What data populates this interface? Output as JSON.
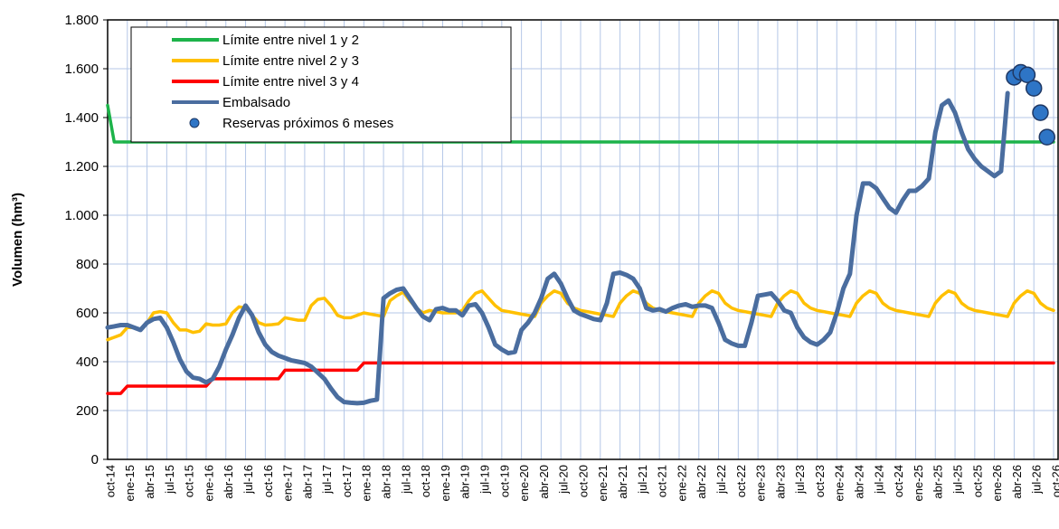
{
  "chart_data": {
    "type": "line",
    "y_label": "Volumen (hm³)",
    "ylim": [
      0,
      1800
    ],
    "yticks": [
      0,
      200,
      400,
      600,
      800,
      {
        "value": 1000,
        "label": "1.000"
      },
      {
        "value": 1200,
        "label": "1.200"
      },
      {
        "value": 1400,
        "label": "1.400"
      },
      {
        "value": 1600,
        "label": "1.600"
      },
      {
        "value": 1800,
        "label": "1.800"
      }
    ],
    "grid": true,
    "legend": "upper left",
    "categories": [
      "oct-14",
      null,
      null,
      "ene-15",
      null,
      null,
      "abr-15",
      null,
      null,
      "jul-15",
      null,
      null,
      "oct-15",
      null,
      null,
      "ene-16",
      null,
      null,
      "abr-16",
      null,
      null,
      "jul-16",
      null,
      null,
      "oct-16",
      null,
      null,
      "ene-17",
      null,
      null,
      "abr-17",
      null,
      null,
      "jul-17",
      null,
      null,
      "oct-17",
      null,
      null,
      "ene-18",
      null,
      null,
      "abr-18",
      null,
      null,
      "jul-18",
      null,
      null,
      "oct-18",
      null,
      null,
      "ene-19",
      null,
      null,
      "abr-19",
      null,
      null,
      "jul-19",
      null,
      null,
      "oct-19",
      null,
      null,
      "ene-20",
      null,
      null,
      "abr-20",
      null,
      null,
      "jul-20",
      null,
      null,
      "oct-20",
      null,
      null,
      "ene-21",
      null,
      null,
      "abr-21",
      null,
      null,
      "jul-21",
      null,
      null,
      "oct-21",
      null,
      null,
      "ene-22",
      null,
      null,
      "abr-22",
      null,
      null,
      "jul-22",
      null,
      null,
      "oct-22",
      null,
      null,
      "ene-23",
      null,
      null,
      "abr-23",
      null,
      null,
      "jul-23",
      null,
      null,
      "oct-23",
      null,
      null,
      "ene-24",
      null,
      null,
      "abr-24",
      null,
      null,
      "jul-24",
      null,
      null,
      "oct-24",
      null,
      null,
      "ene-25",
      null,
      null,
      "abr-25",
      null,
      null,
      "jul-25",
      null,
      null,
      "oct-25",
      null,
      null,
      "ene-26",
      null,
      null,
      "abr-26",
      null,
      null,
      "jul-26",
      null,
      null,
      "oct-26"
    ],
    "series": [
      {
        "name": "Límite entre nivel 1 y 2",
        "color": "#1db34a",
        "type": "line",
        "values": [
          1450,
          1300,
          1300,
          1300,
          1300,
          1300,
          1300,
          1300,
          1300,
          1300,
          1300,
          1300,
          1300,
          1300,
          1300,
          1300,
          1300,
          1300,
          1300,
          1300,
          1300,
          1300,
          1300,
          1300,
          1300,
          1300,
          1300,
          1300,
          1300,
          1300,
          1300,
          1300,
          1300,
          1300,
          1300,
          1300,
          1300,
          1300,
          1300,
          1300,
          1300,
          1300,
          1300,
          1300,
          1300,
          1300,
          1300,
          1300,
          1300,
          1300,
          1300,
          1300,
          1300,
          1300,
          1300,
          1300,
          1300,
          1300,
          1300,
          1300,
          1300,
          1300,
          1300,
          1300,
          1300,
          1300,
          1300,
          1300,
          1300,
          1300,
          1300,
          1300,
          1300,
          1300,
          1300,
          1300,
          1300,
          1300,
          1300,
          1300,
          1300,
          1300,
          1300,
          1300,
          1300,
          1300,
          1300,
          1300,
          1300,
          1300,
          1300,
          1300,
          1300,
          1300,
          1300,
          1300,
          1300,
          1300,
          1300,
          1300,
          1300,
          1300,
          1300,
          1300,
          1300,
          1300,
          1300,
          1300,
          1300,
          1300,
          1300,
          1300,
          1300,
          1300,
          1300,
          1300,
          1300,
          1300,
          1300,
          1300,
          1300,
          1300,
          1300,
          1300,
          1300,
          1300,
          1300,
          1300,
          1300,
          1300,
          1300,
          1300,
          1300,
          1300,
          1300,
          1300,
          1300,
          1300,
          1300,
          1300,
          1300,
          1300,
          1300,
          1300,
          1300
        ]
      },
      {
        "name": "Límite entre nivel 2 y 3",
        "color": "#ffc000",
        "type": "line",
        "values": [
          490,
          500,
          510,
          540,
          540,
          530,
          560,
          600,
          605,
          600,
          560,
          530,
          530,
          520,
          525,
          555,
          550,
          550,
          555,
          600,
          625,
          620,
          590,
          560,
          550,
          552,
          555,
          580,
          575,
          570,
          570,
          630,
          655,
          660,
          630,
          590,
          580,
          580,
          590,
          600,
          595,
          590,
          585,
          650,
          670,
          685,
          650,
          620,
          600,
          610,
          605,
          600,
          600,
          600,
          610,
          650,
          680,
          690,
          660,
          630,
          610,
          605,
          600,
          595,
          590,
          585,
          640,
          670,
          690,
          680,
          640,
          620,
          610,
          605,
          600,
          595,
          590,
          585,
          640,
          670,
          690,
          680,
          640,
          620,
          610,
          605,
          600,
          595,
          590,
          585,
          640,
          670,
          690,
          680,
          640,
          620,
          610,
          605,
          600,
          595,
          590,
          585,
          640,
          670,
          690,
          680,
          640,
          620,
          610,
          605,
          600,
          595,
          590,
          585,
          640,
          670,
          690,
          680,
          640,
          620,
          610,
          605,
          600,
          595,
          590,
          585,
          640,
          670,
          690,
          680,
          640,
          620,
          610,
          605,
          600,
          595,
          590,
          585,
          640,
          670,
          690,
          680,
          640,
          620,
          610
        ]
      },
      {
        "name": "Límite entre nivel 3 y 4",
        "color": "#ff0000",
        "type": "line",
        "values": [
          270,
          270,
          270,
          300,
          300,
          300,
          300,
          300,
          300,
          300,
          300,
          300,
          300,
          300,
          300,
          300,
          330,
          330,
          330,
          330,
          330,
          330,
          330,
          330,
          330,
          330,
          330,
          365,
          365,
          365,
          365,
          365,
          365,
          365,
          365,
          365,
          365,
          365,
          365,
          395,
          395,
          395,
          395,
          395,
          395,
          395,
          395,
          395,
          395,
          395,
          395,
          395,
          395,
          395,
          395,
          395,
          395,
          395,
          395,
          395,
          395,
          395,
          395,
          395,
          395,
          395,
          395,
          395,
          395,
          395,
          395,
          395,
          395,
          395,
          395,
          395,
          395,
          395,
          395,
          395,
          395,
          395,
          395,
          395,
          395,
          395,
          395,
          395,
          395,
          395,
          395,
          395,
          395,
          395,
          395,
          395,
          395,
          395,
          395,
          395,
          395,
          395,
          395,
          395,
          395,
          395,
          395,
          395,
          395,
          395,
          395,
          395,
          395,
          395,
          395,
          395,
          395,
          395,
          395,
          395,
          395,
          395,
          395,
          395,
          395,
          395,
          395,
          395,
          395,
          395,
          395,
          395,
          395,
          395,
          395,
          395,
          395,
          395,
          395,
          395,
          395,
          395,
          395,
          395,
          395
        ]
      },
      {
        "name": "Embalsado",
        "color": "#4a6d9f",
        "type": "line",
        "values": [
          540,
          545,
          550,
          550,
          540,
          530,
          560,
          575,
          580,
          540,
          480,
          410,
          360,
          335,
          330,
          315,
          330,
          380,
          450,
          510,
          580,
          630,
          590,
          520,
          470,
          440,
          425,
          415,
          405,
          400,
          395,
          380,
          355,
          330,
          290,
          255,
          235,
          232,
          230,
          232,
          240,
          245,
          660,
          680,
          695,
          700,
          660,
          620,
          585,
          570,
          615,
          620,
          610,
          610,
          590,
          630,
          635,
          600,
          540,
          470,
          450,
          435,
          440,
          530,
          560,
          600,
          660,
          740,
          760,
          720,
          660,
          610,
          595,
          585,
          575,
          570,
          640,
          760,
          765,
          755,
          740,
          700,
          620,
          610,
          615,
          605,
          620,
          630,
          635,
          625,
          630,
          630,
          620,
          560,
          490,
          475,
          465,
          465,
          560,
          670,
          675,
          680,
          650,
          610,
          600,
          540,
          500,
          480,
          470,
          490,
          520,
          600,
          700,
          760,
          1000,
          1130,
          1130,
          1110,
          1070,
          1030,
          1010,
          1060,
          1100,
          1100,
          1120,
          1150,
          1340,
          1450,
          1470,
          1420,
          1340,
          1270,
          1230,
          1200,
          1180,
          1160,
          1180,
          1500,
          null,
          null,
          null,
          null,
          null,
          null,
          null
        ]
      },
      {
        "name": "Reservas próximos 6 meses",
        "color": "#2e75c6",
        "type": "scatter",
        "values": [
          null,
          null,
          null,
          null,
          null,
          null,
          null,
          null,
          null,
          null,
          null,
          null,
          null,
          null,
          null,
          null,
          null,
          null,
          null,
          null,
          null,
          null,
          null,
          null,
          null,
          null,
          null,
          null,
          null,
          null,
          null,
          null,
          null,
          null,
          null,
          null,
          null,
          null,
          null,
          null,
          null,
          null,
          null,
          null,
          null,
          null,
          null,
          null,
          null,
          null,
          null,
          null,
          null,
          null,
          null,
          null,
          null,
          null,
          null,
          null,
          null,
          null,
          null,
          null,
          null,
          null,
          null,
          null,
          null,
          null,
          null,
          null,
          null,
          null,
          null,
          null,
          null,
          null,
          null,
          null,
          null,
          null,
          null,
          null,
          null,
          null,
          null,
          null,
          null,
          null,
          null,
          null,
          null,
          null,
          null,
          null,
          null,
          null,
          null,
          null,
          null,
          null,
          null,
          null,
          null,
          null,
          null,
          null,
          null,
          null,
          null,
          null,
          null,
          null,
          null,
          null,
          null,
          null,
          null,
          null,
          null,
          null,
          null,
          null,
          null,
          null,
          null,
          null,
          null,
          null,
          null,
          null,
          null,
          null,
          null,
          null,
          null,
          null,
          1565,
          1585,
          1575,
          1520,
          1420,
          1320,
          null
        ]
      }
    ]
  }
}
